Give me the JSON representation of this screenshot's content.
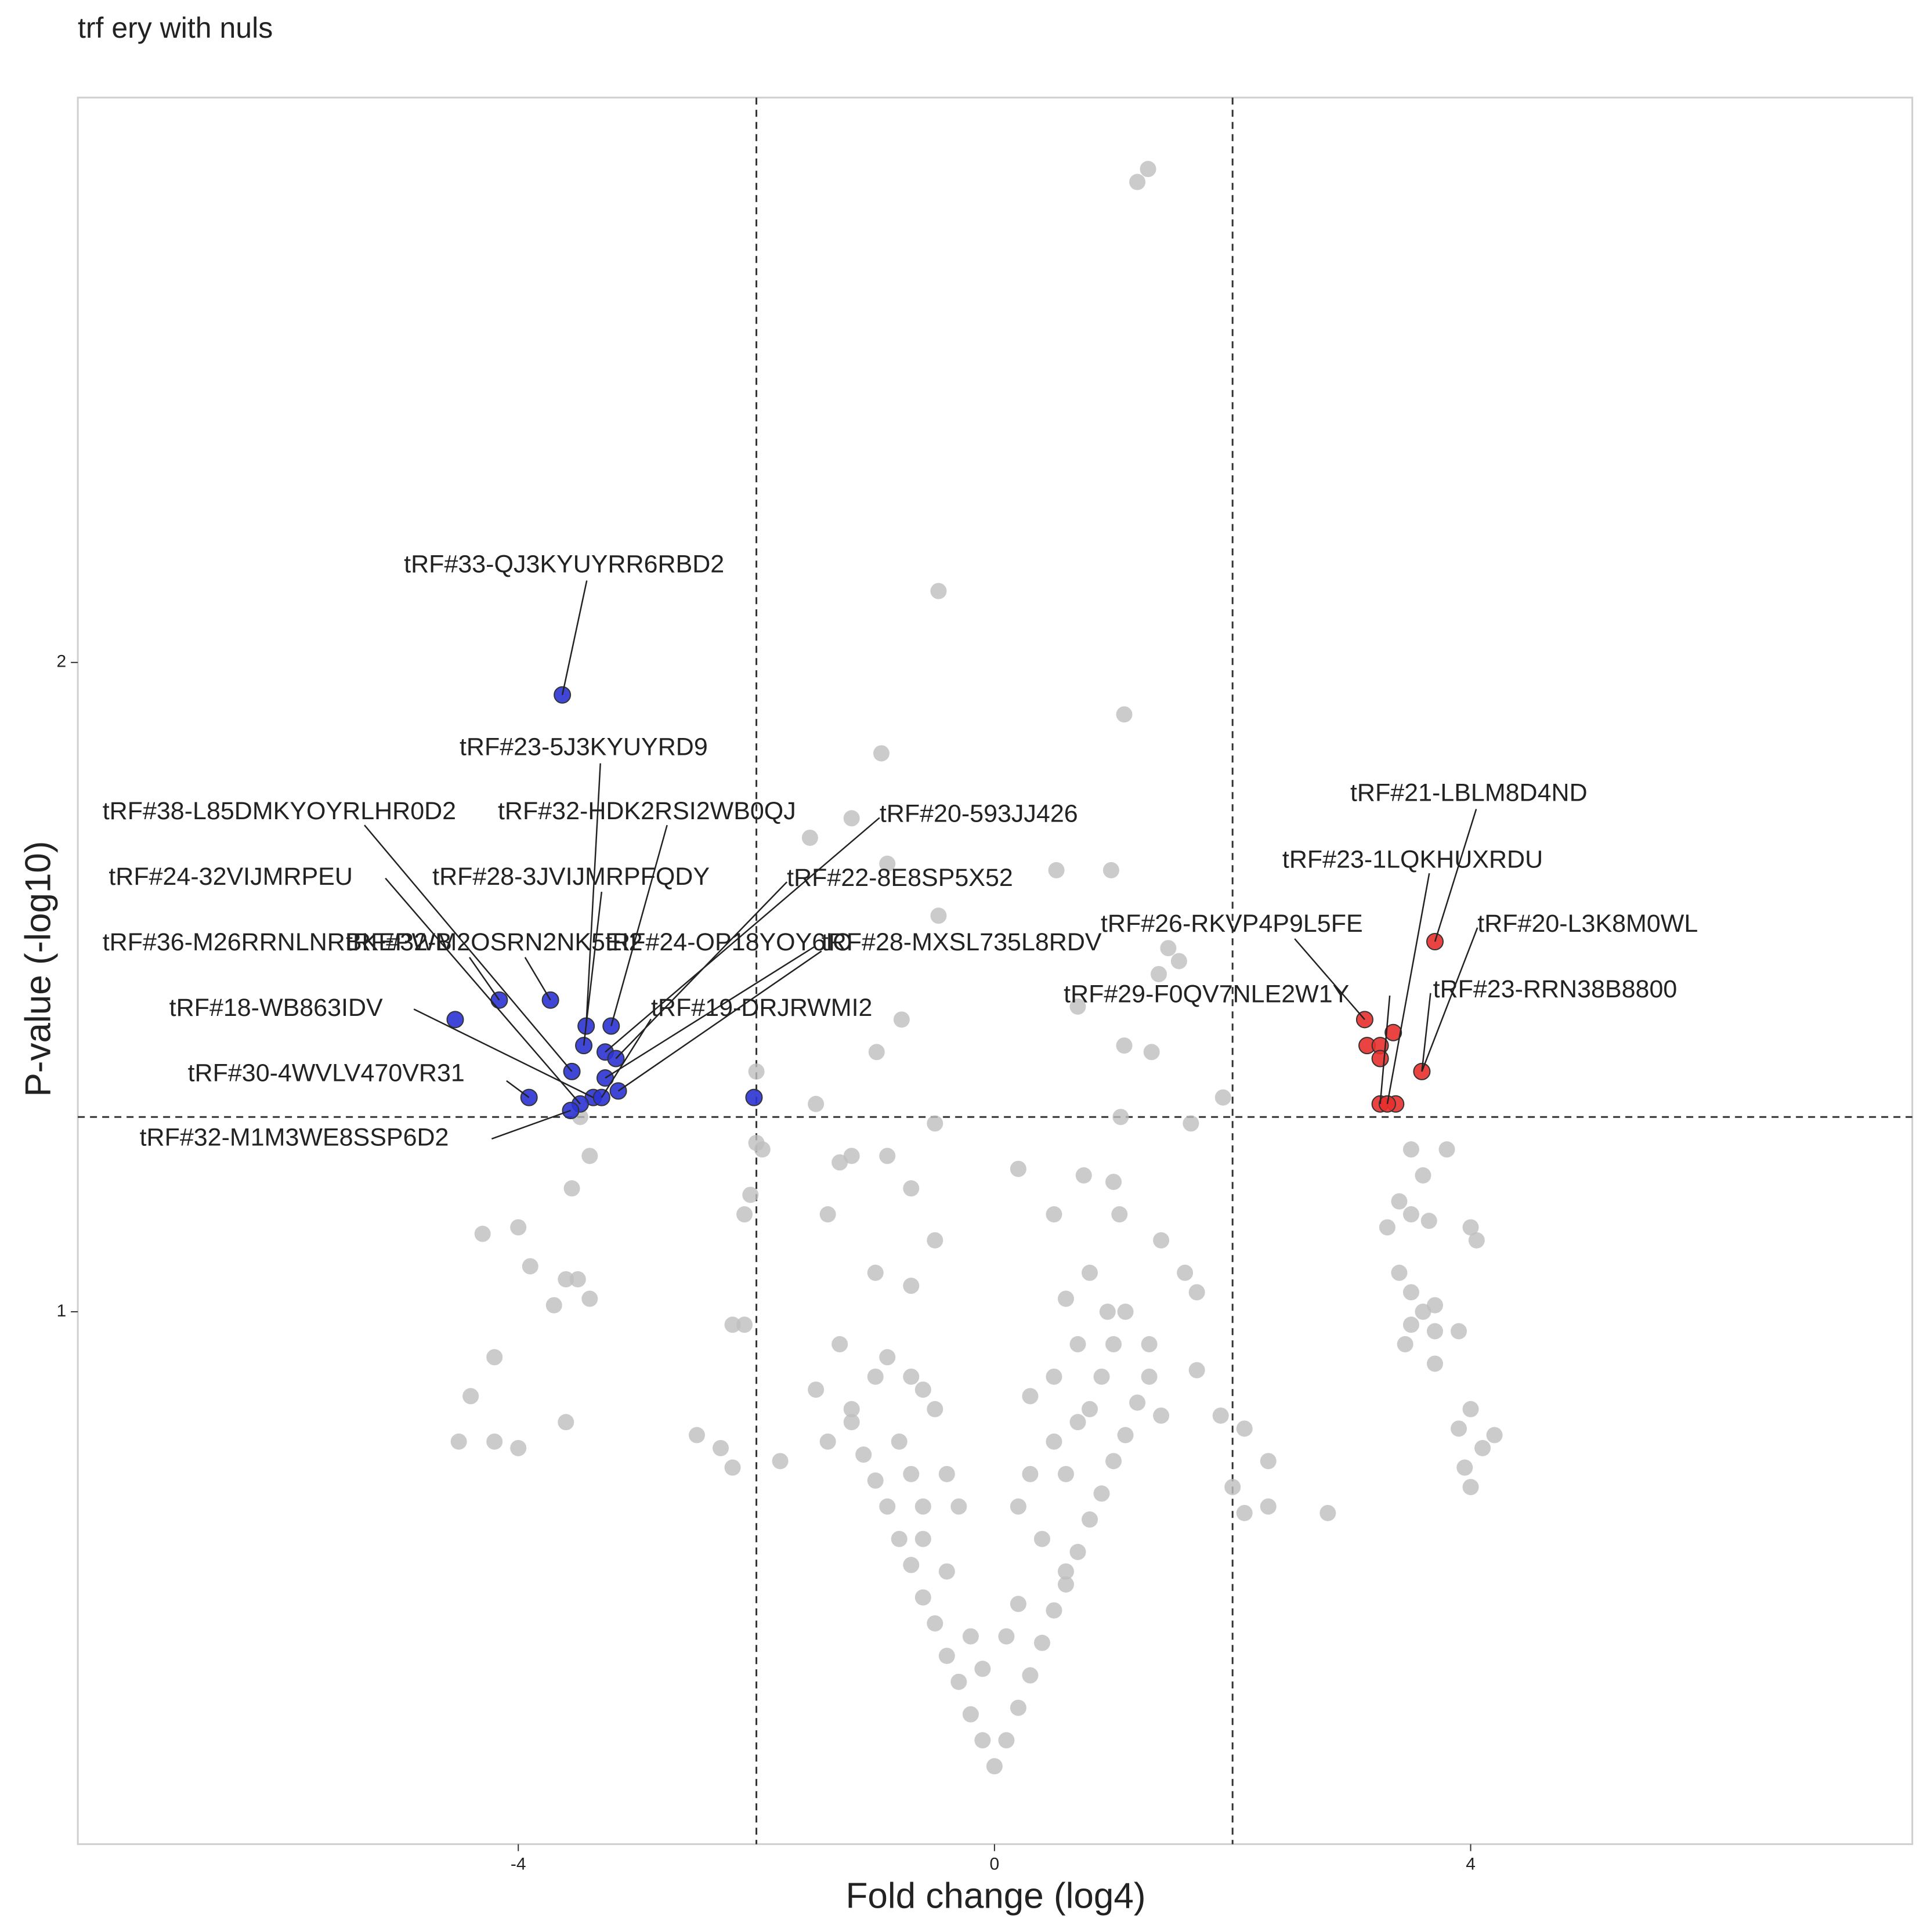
{
  "chart_data": {
    "type": "scatter",
    "title": "trf ery with nuls",
    "x_label": "Fold change (log4)",
    "y_label": "P-value (-log10)",
    "xlim": [
      -7.7,
      7.71
    ],
    "ylim": [
      0.18,
      2.87
    ],
    "xticks": [
      -4,
      0,
      4
    ],
    "yticks": [
      1,
      2
    ],
    "vlines": [
      -2,
      2
    ],
    "hlines": [
      1.3
    ],
    "grid": false,
    "series": [
      {
        "color": "#bebebe",
        "x": [
          1.2,
          1.29,
          -0.47,
          1.09,
          -0.95,
          -1.2,
          -1.55,
          0.52,
          0.98,
          -0.9,
          -0.47,
          1.46,
          1.55,
          1.38,
          0.7,
          -0.78,
          -0.99,
          1.09,
          1.32,
          -2.0,
          -1.5,
          1.92,
          1.06,
          -0.5,
          1.65,
          -3.48,
          -3.4,
          -3.55,
          -4.0,
          -4.3,
          -3.9,
          -3.6,
          -3.5,
          -3.4,
          -3.7,
          -4.2,
          -4.4,
          -3.6,
          -4.5,
          -4.2,
          -4.0,
          -2.5,
          -2.3,
          -2.2,
          -2.0,
          -1.95,
          -2.05,
          -2.1,
          -2.2,
          -2.1,
          -1.8,
          -1.5,
          -1.4,
          -1.2,
          -1.3,
          -0.9,
          -0.7,
          -0.5,
          -1.0,
          -0.7,
          -0.9,
          -0.6,
          -1.2,
          -0.7,
          0.2,
          0.5,
          0.75,
          1.0,
          1.05,
          1.4,
          1.6,
          1.7,
          0.8,
          0.6,
          0.95,
          1.3,
          1.7,
          1.9,
          2.1,
          2.0,
          2.3,
          2.3,
          2.1,
          2.8,
          1.4,
          0.5,
          0.7,
          0.3,
          3.5,
          3.6,
          3.4,
          3.5,
          3.3,
          3.65,
          3.8,
          4.0,
          4.05,
          3.4,
          3.5,
          3.6,
          3.7,
          3.5,
          3.45,
          3.7,
          3.9,
          3.7,
          4.0,
          3.9,
          4.2,
          4.1,
          3.95,
          4.0,
          0,
          -0.1,
          0.1,
          -0.2,
          0.2,
          -0.3,
          0.3,
          -0.4,
          0.4,
          -0.5,
          0.5,
          -0.6,
          0.6,
          -0.7,
          0.7,
          -0.8,
          0.8,
          -0.9,
          0.9,
          -1.0,
          1.0,
          -1.1,
          1.1,
          -1.2,
          1.2,
          1.3,
          -0.2,
          0.2,
          -0.4,
          0.4,
          -0.6,
          0.6,
          -0.8,
          0.8,
          -1.0,
          1.0,
          -0.3,
          0.3,
          -0.5,
          0.5,
          0.2,
          -0.1,
          0.1,
          -0.7,
          0.7,
          -1.3,
          -1.4,
          -0.4,
          0.9,
          1.1,
          0.6,
          -0.6
        ],
        "y": [
          2.74,
          2.76,
          2.11,
          1.92,
          1.86,
          1.76,
          1.73,
          1.68,
          1.68,
          1.69,
          1.61,
          1.56,
          1.54,
          1.52,
          1.47,
          1.45,
          1.4,
          1.41,
          1.4,
          1.37,
          1.32,
          1.33,
          1.3,
          1.29,
          1.29,
          1.3,
          1.24,
          1.19,
          1.13,
          1.12,
          1.07,
          1.05,
          1.05,
          1.02,
          1.01,
          0.93,
          0.87,
          0.83,
          0.8,
          0.8,
          0.79,
          0.81,
          0.79,
          0.76,
          1.26,
          1.25,
          1.18,
          1.15,
          0.98,
          0.98,
          0.77,
          0.88,
          1.15,
          1.24,
          1.23,
          1.24,
          1.19,
          1.11,
          1.06,
          1.04,
          0.93,
          0.88,
          0.85,
          0.75,
          1.22,
          1.15,
          1.21,
          1.2,
          1.15,
          1.11,
          1.06,
          1.03,
          1.06,
          1.02,
          1.0,
          0.95,
          0.91,
          0.84,
          0.82,
          0.73,
          0.77,
          0.7,
          0.69,
          0.69,
          0.84,
          0.9,
          0.83,
          0.87,
          1.25,
          1.21,
          1.17,
          1.15,
          1.13,
          1.14,
          1.25,
          1.13,
          1.11,
          1.06,
          1.03,
          1.0,
          1.01,
          0.98,
          0.95,
          0.97,
          0.97,
          0.92,
          0.85,
          0.82,
          0.81,
          0.79,
          0.76,
          0.73,
          0.3,
          0.34,
          0.34,
          0.38,
          0.39,
          0.43,
          0.44,
          0.47,
          0.49,
          0.52,
          0.54,
          0.56,
          0.58,
          0.61,
          0.63,
          0.65,
          0.68,
          0.7,
          0.72,
          0.74,
          0.77,
          0.78,
          0.81,
          0.83,
          0.86,
          0.9,
          0.5,
          0.55,
          0.6,
          0.65,
          0.7,
          0.75,
          0.8,
          0.85,
          0.9,
          0.95,
          0.7,
          0.75,
          0.85,
          0.8,
          0.7,
          0.45,
          0.5,
          0.9,
          0.95,
          0.95,
          0.8,
          0.75,
          0.9,
          1.0,
          0.6,
          0.65
        ]
      },
      {
        "color": "#2b33d3",
        "x": [
          -3.63,
          -4.53,
          -4.16,
          -3.73,
          -3.91,
          -3.43,
          -3.22,
          -3.45,
          -3.27,
          -3.18,
          -3.55,
          -3.27,
          -3.16,
          -3.37,
          -3.48,
          -3.56,
          -2.02,
          -3.3
        ],
        "y": [
          1.95,
          1.45,
          1.48,
          1.48,
          1.33,
          1.44,
          1.44,
          1.41,
          1.4,
          1.39,
          1.37,
          1.36,
          1.34,
          1.33,
          1.32,
          1.31,
          1.33,
          1.33
        ]
      },
      {
        "color": "#e8302e",
        "x": [
          3.7,
          3.11,
          3.35,
          3.13,
          3.24,
          3.24,
          3.59,
          3.24,
          3.37,
          3.3
        ],
        "y": [
          1.57,
          1.45,
          1.43,
          1.41,
          1.41,
          1.39,
          1.37,
          1.32,
          1.32,
          1.32
        ]
      }
    ],
    "annotations": [
      "tRF#33-QJ3KYUYRR6RBD2",
      "tRF#23-5J3KYUYRD9",
      "tRF#38-L85DMKYOYRLHR0D2",
      "tRF#32-HDK2RSI2WB0QJ",
      "tRF#20-593JJ426",
      "tRF#24-32VIJMRPEU",
      "tRF#28-3JVIJMRPFQDY",
      "tRF#22-8E8SP5X52",
      "tRF#36-M26RRNLNRBKEPWB",
      "tRF#32-M2OSRN2NK5EI2",
      "tRF#24-OP18YOY6IO",
      "tRF#28-MXSL735L8RDV",
      "tRF#18-WB863IDV",
      "tRF#19-DRJRWMI2",
      "tRF#30-4WVLV470VR31",
      "tRF#32-M1M3WE8SSP6D2",
      "tRF#21-LBLM8D4ND",
      "tRF#23-1LQKHUXRDU",
      "tRF#26-RKVP4P9L5FE",
      "tRF#20-L3K8M0WL",
      "tRF#29-F0QV7NLE2W1Y",
      "tRF#23-RRN38B8800"
    ]
  }
}
